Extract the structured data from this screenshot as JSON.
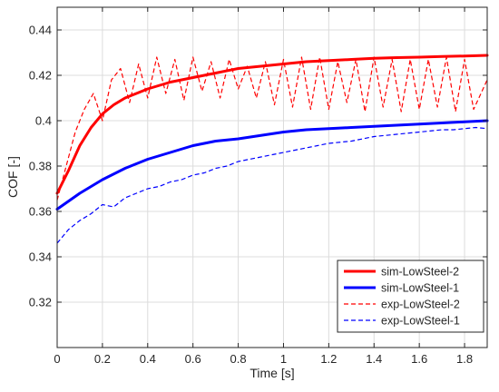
{
  "chart_data": {
    "type": "line",
    "title": "",
    "xlabel": "Time [s]",
    "ylabel": "COF [-]",
    "xlim": [
      0,
      1.9
    ],
    "ylim": [
      0.3,
      0.45
    ],
    "xticks": [
      0,
      0.2,
      0.4,
      0.6,
      0.8,
      1,
      1.2,
      1.4,
      1.6,
      1.8
    ],
    "xtick_labels": [
      "0",
      "0.2",
      "0.4",
      "0.6",
      "0.8",
      "1",
      "1.2",
      "1.4",
      "1.6",
      "1.8"
    ],
    "yticks": [
      0.32,
      0.34,
      0.36,
      0.38,
      0.4,
      0.42,
      0.44
    ],
    "ytick_labels": [
      "0.32",
      "0.34",
      "0.36",
      "0.38",
      "0.4",
      "0.42",
      "0.44"
    ],
    "grid": true,
    "legend_position": "bottom-right",
    "series": [
      {
        "name": "sim-LowSteel-2",
        "color": "#ff0000",
        "style": "solid",
        "x": [
          0,
          0.05,
          0.1,
          0.15,
          0.2,
          0.25,
          0.3,
          0.4,
          0.5,
          0.6,
          0.7,
          0.8,
          0.9,
          1.0,
          1.1,
          1.2,
          1.3,
          1.4,
          1.5,
          1.6,
          1.7,
          1.8,
          1.9
        ],
        "y": [
          0.368,
          0.378,
          0.389,
          0.397,
          0.403,
          0.407,
          0.41,
          0.414,
          0.417,
          0.419,
          0.421,
          0.423,
          0.424,
          0.425,
          0.426,
          0.4265,
          0.427,
          0.4275,
          0.4278,
          0.428,
          0.4283,
          0.4285,
          0.4288
        ]
      },
      {
        "name": "sim-LowSteel-1",
        "color": "#0000ff",
        "style": "solid",
        "x": [
          0,
          0.1,
          0.2,
          0.3,
          0.4,
          0.5,
          0.6,
          0.7,
          0.8,
          0.9,
          1.0,
          1.1,
          1.2,
          1.3,
          1.4,
          1.5,
          1.6,
          1.7,
          1.8,
          1.9
        ],
        "y": [
          0.361,
          0.368,
          0.374,
          0.379,
          0.383,
          0.386,
          0.389,
          0.391,
          0.392,
          0.3935,
          0.395,
          0.396,
          0.3965,
          0.397,
          0.3975,
          0.398,
          0.3985,
          0.399,
          0.3995,
          0.4
        ]
      },
      {
        "name": "exp-LowSteel-2",
        "color": "#ff0000",
        "style": "dashed",
        "x": [
          0,
          0.04,
          0.08,
          0.12,
          0.16,
          0.2,
          0.24,
          0.28,
          0.32,
          0.36,
          0.4,
          0.44,
          0.48,
          0.52,
          0.56,
          0.6,
          0.64,
          0.68,
          0.72,
          0.76,
          0.8,
          0.84,
          0.88,
          0.92,
          0.96,
          1.0,
          1.04,
          1.08,
          1.12,
          1.16,
          1.2,
          1.24,
          1.28,
          1.32,
          1.36,
          1.4,
          1.44,
          1.48,
          1.52,
          1.56,
          1.6,
          1.64,
          1.68,
          1.72,
          1.76,
          1.8,
          1.84,
          1.9
        ],
        "y": [
          0.365,
          0.38,
          0.395,
          0.405,
          0.412,
          0.4,
          0.418,
          0.423,
          0.408,
          0.425,
          0.41,
          0.428,
          0.412,
          0.427,
          0.409,
          0.428,
          0.413,
          0.426,
          0.41,
          0.427,
          0.414,
          0.424,
          0.41,
          0.426,
          0.407,
          0.427,
          0.406,
          0.428,
          0.405,
          0.428,
          0.405,
          0.426,
          0.408,
          0.427,
          0.404,
          0.428,
          0.406,
          0.427,
          0.404,
          0.427,
          0.405,
          0.427,
          0.406,
          0.428,
          0.404,
          0.427,
          0.405,
          0.418
        ]
      },
      {
        "name": "exp-LowSteel-1",
        "color": "#0000ff",
        "style": "dashed",
        "x": [
          0,
          0.05,
          0.1,
          0.15,
          0.2,
          0.25,
          0.3,
          0.35,
          0.4,
          0.45,
          0.5,
          0.55,
          0.6,
          0.65,
          0.7,
          0.75,
          0.8,
          0.85,
          0.9,
          0.95,
          1.0,
          1.05,
          1.1,
          1.15,
          1.2,
          1.25,
          1.3,
          1.35,
          1.4,
          1.45,
          1.5,
          1.55,
          1.6,
          1.65,
          1.7,
          1.75,
          1.8,
          1.85,
          1.9
        ],
        "y": [
          0.346,
          0.352,
          0.356,
          0.359,
          0.363,
          0.362,
          0.366,
          0.368,
          0.37,
          0.371,
          0.373,
          0.374,
          0.376,
          0.377,
          0.379,
          0.38,
          0.382,
          0.383,
          0.384,
          0.385,
          0.386,
          0.387,
          0.388,
          0.389,
          0.39,
          0.3905,
          0.391,
          0.392,
          0.393,
          0.3935,
          0.394,
          0.3945,
          0.395,
          0.3955,
          0.396,
          0.396,
          0.3965,
          0.397,
          0.3965
        ]
      }
    ]
  }
}
